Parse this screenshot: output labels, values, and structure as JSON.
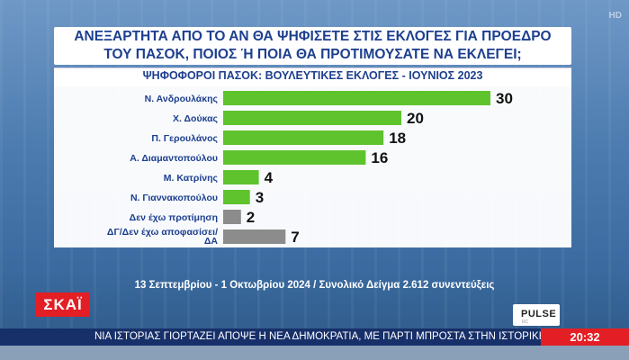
{
  "header": {
    "question": "ΑΝΕΞΑΡΤΗΤΑ ΑΠΟ ΤΟ ΑΝ ΘΑ ΨΗΦΙΣΕΤΕ ΣΤΙΣ ΕΚΛΟΓΕΣ ΓΙΑ ΠΡΟΕΔΡΟ\nΤΟΥ ΠΑΣΟΚ, ΠΟΙΟΣ Ή ΠΟΙΑ ΘΑ ΠΡΟΤΙΜΟΥΣΑΤΕ ΝΑ ΕΚΛΕΓΕΙ;",
    "subtitle": "ΨΗΦΟΦΟΡΟΙ ΠΑΣΟΚ: ΒΟΥΛΕΥΤΙΚΕΣ ΕΚΛΟΓΕΣ - ΙΟΥΝΙΟΣ 2023",
    "hd_mark": "HD"
  },
  "chart_data": {
    "type": "bar",
    "orientation": "horizontal",
    "title": "ΑΝΕΞΑΡΤΗΤΑ ΑΠΟ ΤΟ ΑΝ ΘΑ ΨΗΦΙΣΕΤΕ ΣΤΙΣ ΕΚΛΟΓΕΣ ΓΙΑ ΠΡΟΕΔΡΟ ΤΟΥ ΠΑΣΟΚ, ΠΟΙΟΣ Ή ΠΟΙΑ ΘΑ ΠΡΟΤΙΜΟΥΣΑΤΕ ΝΑ ΕΚΛΕΓΕΙ;",
    "subtitle": "ΨΗΦΟΦΟΡΟΙ ΠΑΣΟΚ: ΒΟΥΛΕΥΤΙΚΕΣ ΕΚΛΟΓΕΣ - ΙΟΥΝΙΟΣ 2023",
    "categories": [
      "Ν. Ανδρουλάκης",
      "Χ. Δούκας",
      "Π. Γερουλάνος",
      "Α. Διαμαντοπούλου",
      "Μ. Κατρίνης",
      "Ν. Γιαννακοπούλου",
      "Δεν έχω προτίμηση",
      "ΔΓ/Δεν έχω αποφασίσει/ ΔΑ"
    ],
    "values": [
      30,
      20,
      18,
      16,
      4,
      3,
      2,
      7
    ],
    "colors": [
      "#5fc32d",
      "#5fc32d",
      "#5fc32d",
      "#5fc32d",
      "#5fc32d",
      "#5fc32d",
      "#8c8c8c",
      "#8c8c8c"
    ],
    "xlim": [
      0,
      30
    ],
    "grid": false,
    "legend": "none"
  },
  "footer": {
    "sample": "13 Σεπτεμβρίου - 1 Οκτωβρίου 2024 / Συνολικό Δείγμα 2.612 συνεντεύξεις"
  },
  "broadcast": {
    "channel_logo": "ΣΚΑΪ",
    "pollster": "PULSE",
    "pollster_sub": "RC",
    "ticker": "ΝΙΑ ΙΣΤΟΡΙΑΣ ΓΙΟΡΤΑΖΕΙ ΑΠΟΨΕ Η ΝΕΑ ΔΗΜΟΚΡΑΤΙΑ, ΜΕ ΠΑΡΤΙ ΜΠΡΟΣΤΑ ΣΤΗΝ ΙΣΤΟΡΙΚΗ ΕΔ",
    "time": "20:32"
  }
}
